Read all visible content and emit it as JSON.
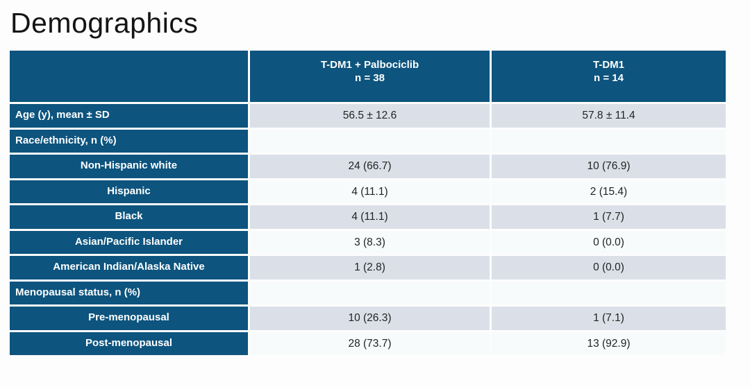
{
  "title": "Demographics",
  "colors": {
    "header_blue": "#0d547e",
    "row_gray": "#dbe0e8",
    "row_light": "#f7fbfc",
    "title_text": "#141414",
    "value_text": "#222222"
  },
  "chart_data": {
    "type": "table",
    "title": "Demographics",
    "legend_position": "none",
    "grid": false,
    "column_headers": [
      {
        "treatment": "T-DM1 + Palbociclib",
        "n": "n = 38"
      },
      {
        "treatment": "T-DM1",
        "n": "n = 14"
      }
    ],
    "rows": [
      {
        "label": "Age (y), mean ± SD",
        "indent": false,
        "values": [
          "56.5 ± 12.6",
          "57.8 ± 11.4"
        ]
      },
      {
        "label": "Race/ethnicity, n (%)",
        "indent": false,
        "values": [
          "",
          ""
        ]
      },
      {
        "label": "Non-Hispanic white",
        "indent": true,
        "values": [
          "24 (66.7)",
          "10 (76.9)"
        ]
      },
      {
        "label": "Hispanic",
        "indent": true,
        "values": [
          "4 (11.1)",
          "2 (15.4)"
        ]
      },
      {
        "label": "Black",
        "indent": true,
        "values": [
          "4 (11.1)",
          "1 (7.7)"
        ]
      },
      {
        "label": "Asian/Pacific Islander",
        "indent": true,
        "values": [
          "3 (8.3)",
          "0 (0.0)"
        ]
      },
      {
        "label": "American Indian/Alaska Native",
        "indent": true,
        "values": [
          "1 (2.8)",
          "0 (0.0)"
        ]
      },
      {
        "label": "Menopausal status, n (%)",
        "indent": false,
        "values": [
          "",
          ""
        ]
      },
      {
        "label": "Pre-menopausal",
        "indent": true,
        "values": [
          "10 (26.3)",
          "1 (7.1)"
        ]
      },
      {
        "label": "Post-menopausal",
        "indent": true,
        "values": [
          "28 (73.7)",
          "13 (92.9)"
        ]
      }
    ]
  }
}
